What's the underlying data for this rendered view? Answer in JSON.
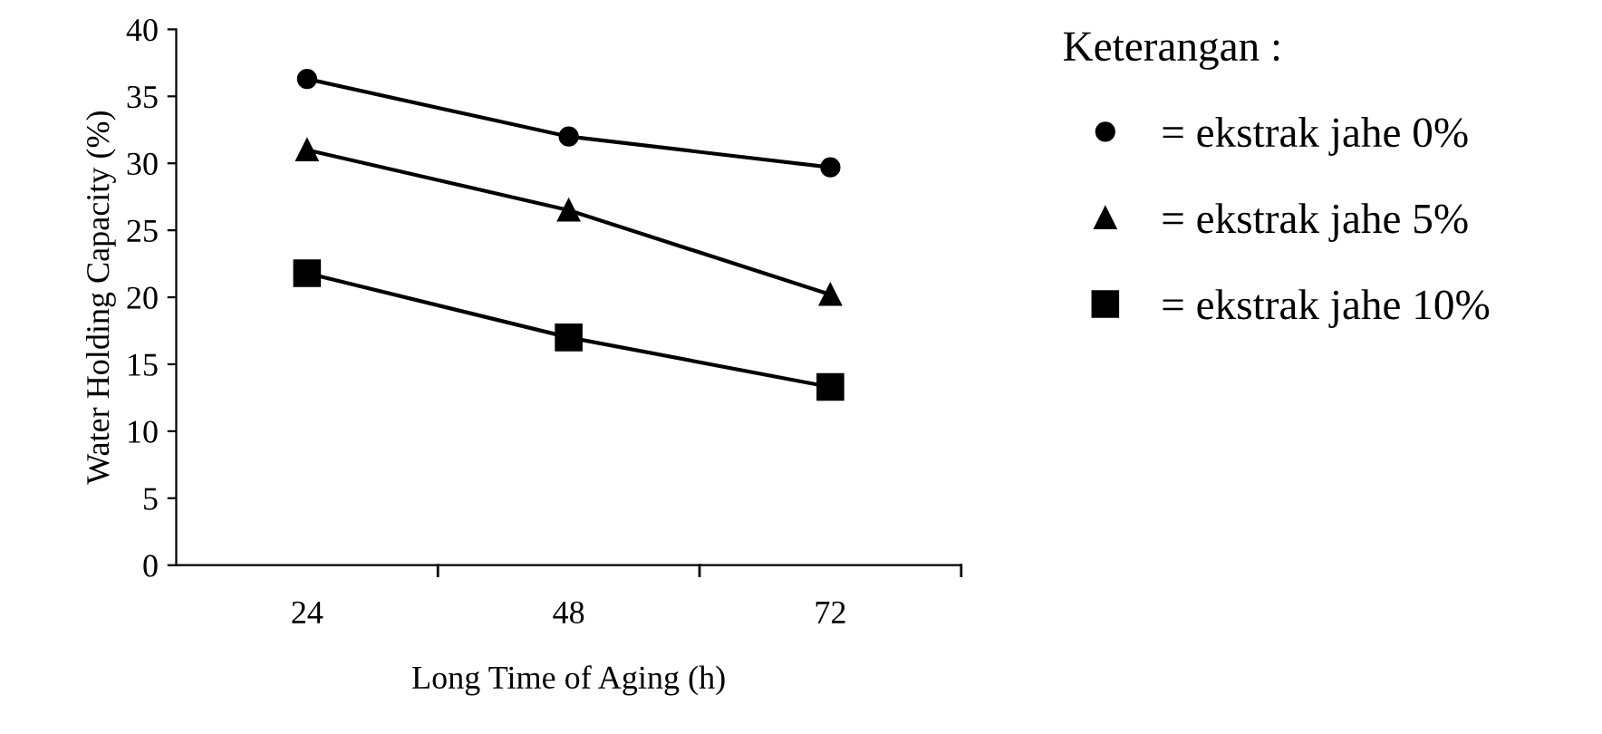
{
  "chart_data": {
    "type": "line",
    "xlabel": "Long Time of Aging (h)",
    "ylabel": "Water Holding Capacity (%)",
    "legend_title": "Keterangan :",
    "categories": [
      "24",
      "48",
      "72"
    ],
    "series": [
      {
        "name": "= ekstrak jahe 0%",
        "color": "#000000",
        "marker": "circle",
        "values": [
          36.3,
          32.0,
          29.7
        ]
      },
      {
        "name": "= ekstrak jahe 5%",
        "color": "#000000",
        "marker": "triangle",
        "values": [
          31.0,
          26.5,
          20.2
        ]
      },
      {
        "name": "= ekstrak jahe 10%",
        "color": "#000000",
        "marker": "square",
        "values": [
          21.8,
          17.0,
          13.3
        ]
      }
    ],
    "ylim": [
      0,
      40
    ],
    "yticks": [
      0,
      5,
      10,
      15,
      20,
      25,
      30,
      35,
      40
    ],
    "grid": false,
    "legend": "right",
    "line_style": "solid"
  }
}
